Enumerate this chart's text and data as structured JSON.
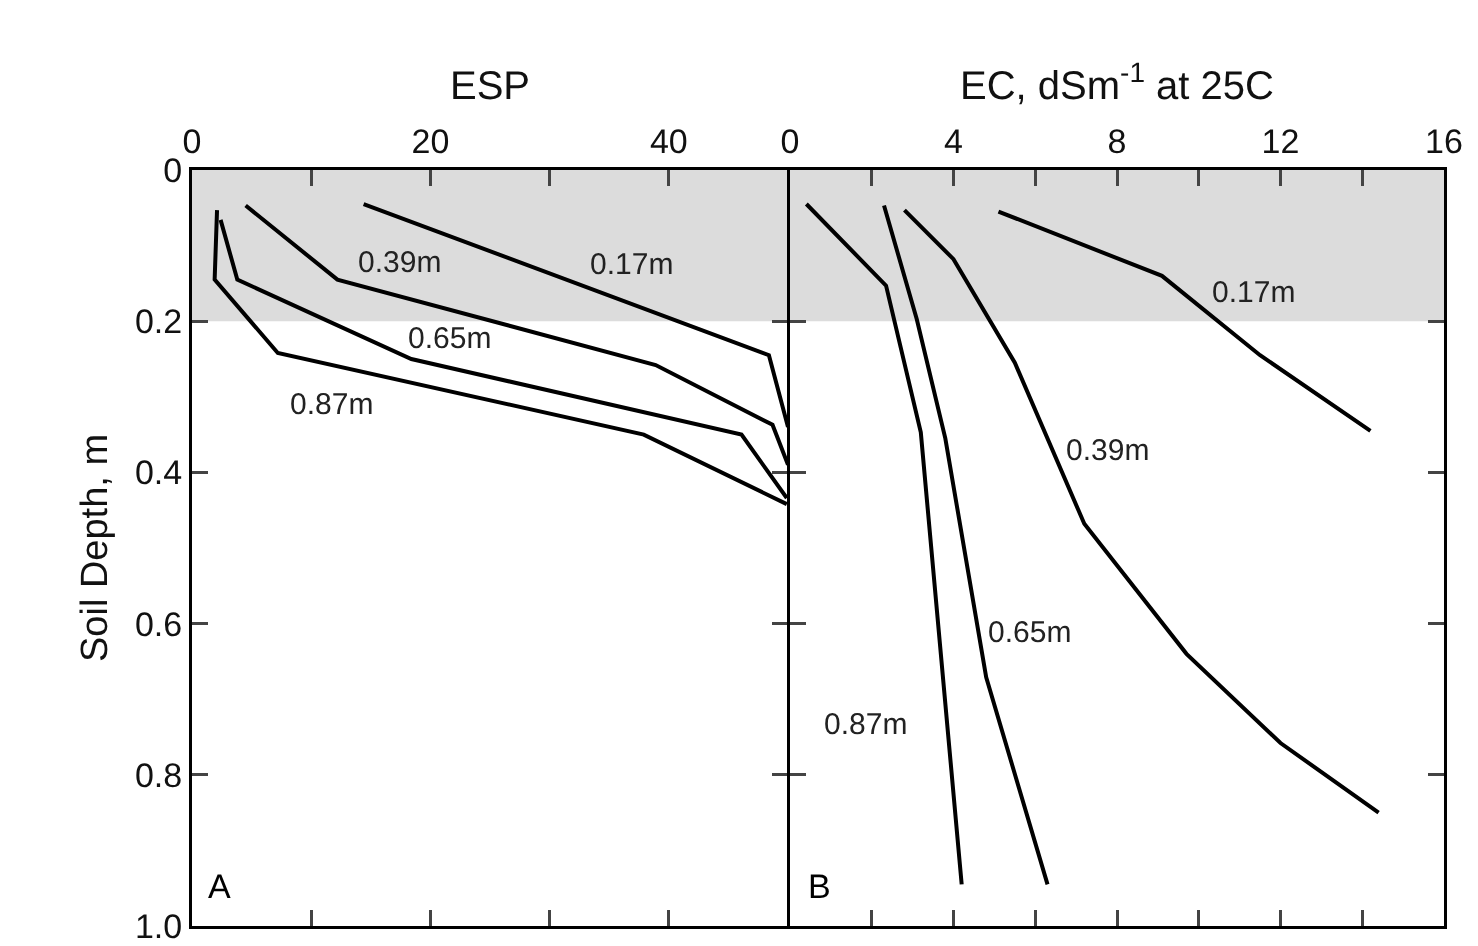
{
  "chart_data": [
    {
      "type": "line",
      "xlabel": "ESP",
      "ylabel": "Soil Depth, m",
      "xlim": [
        0,
        50
      ],
      "xticks": [
        0,
        {
          "value": 10,
          "label": null
        },
        20,
        {
          "value": 30,
          "label": null
        },
        40
      ],
      "ylim": [
        1.0,
        0
      ],
      "yticks": [
        {
          "value": 0,
          "label": "0"
        },
        0.2,
        0.4,
        0.6,
        0.8,
        {
          "value": 1.0,
          "label": "1.0"
        }
      ],
      "grid": false,
      "legend": false,
      "marker": "none",
      "line_style": "solid",
      "bands": [
        {
          "axis": "y",
          "from": 0,
          "to": 0.2,
          "color": "#dcdcdc"
        }
      ],
      "annotations": [
        "A"
      ],
      "series": [
        {
          "name": "0.17m",
          "color": "#000000",
          "x": [
            14.4,
            48.4,
            50
          ],
          "values": [
            0.045,
            0.245,
            0.34
          ]
        },
        {
          "name": "0.39m",
          "color": "#000000",
          "x": [
            4.5,
            12.2,
            38.9,
            48.7,
            50
          ],
          "values": [
            0.047,
            0.145,
            0.258,
            0.337,
            0.39
          ]
        },
        {
          "name": "0.65m",
          "color": "#000000",
          "x": [
            2.4,
            3.8,
            18.4,
            46.1,
            49.9
          ],
          "values": [
            0.066,
            0.145,
            0.25,
            0.35,
            0.434
          ]
        },
        {
          "name": "0.87m",
          "color": "#000000",
          "x": [
            2.1,
            1.9,
            7.2,
            37.9,
            49.9
          ],
          "values": [
            0.053,
            0.145,
            0.242,
            0.35,
            0.442
          ]
        }
      ]
    },
    {
      "type": "line",
      "xlabel": "EC, dSm$^{-1}$ at 25C",
      "xlim": [
        0,
        16
      ],
      "xticks": [
        0,
        {
          "value": 2,
          "label": null
        },
        4,
        {
          "value": 6,
          "label": null
        },
        8,
        {
          "value": 10,
          "label": null
        },
        12,
        {
          "value": 14,
          "label": null
        },
        16
      ],
      "ylim": [
        1.0,
        0
      ],
      "yticks": [
        {
          "value": 0,
          "label": null
        },
        {
          "value": 0.2,
          "label": null
        },
        {
          "value": 0.4,
          "label": null
        },
        {
          "value": 0.6,
          "label": null
        },
        {
          "value": 0.8,
          "label": null
        },
        {
          "value": 1.0,
          "label": null
        }
      ],
      "tick_labels": "x",
      "grid": false,
      "legend": false,
      "marker": "none",
      "line_style": "solid",
      "bands": [
        {
          "axis": "y",
          "from": 0,
          "to": 0.2,
          "color": "#dcdcdc"
        }
      ],
      "annotations": [
        "B"
      ],
      "series": [
        {
          "name": "0.17m",
          "color": "#000000",
          "x": [
            5.1,
            9.1,
            11.5,
            14.2
          ],
          "values": [
            0.055,
            0.14,
            0.245,
            0.345
          ]
        },
        {
          "name": "0.39m",
          "color": "#000000",
          "x": [
            2.8,
            4.0,
            5.5,
            7.2,
            9.7,
            12.0,
            14.4
          ],
          "values": [
            0.053,
            0.118,
            0.255,
            0.468,
            0.64,
            0.758,
            0.85
          ]
        },
        {
          "name": "0.65m",
          "color": "#000000",
          "x": [
            2.3,
            3.1,
            3.8,
            4.8,
            6.3
          ],
          "values": [
            0.047,
            0.197,
            0.355,
            0.671,
            0.945
          ]
        },
        {
          "name": "0.87m",
          "color": "#000000",
          "x": [
            0.4,
            2.35,
            3.2,
            4.2
          ],
          "values": [
            0.045,
            0.153,
            0.347,
            0.945
          ]
        }
      ]
    }
  ]
}
